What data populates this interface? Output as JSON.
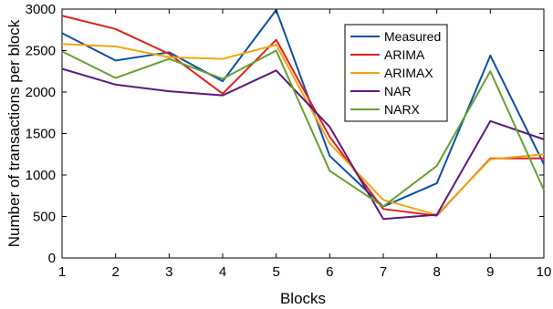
{
  "chart_data": {
    "type": "line",
    "xlabel": "Blocks",
    "ylabel": "Number of transactions per block",
    "xlim": [
      1,
      10
    ],
    "ylim": [
      0,
      3000
    ],
    "xticks": [
      1,
      2,
      3,
      4,
      5,
      6,
      7,
      8,
      9,
      10
    ],
    "yticks": [
      0,
      500,
      1000,
      1500,
      2000,
      2500,
      3000
    ],
    "grid": false,
    "legend_position": "top-right",
    "x": [
      1,
      2,
      3,
      4,
      5,
      6,
      7,
      8,
      9,
      10
    ],
    "series": [
      {
        "name": "Measured",
        "color": "#0a4fa6",
        "values": [
          2710,
          2380,
          2480,
          2130,
          2990,
          1230,
          620,
          900,
          2440,
          1130
        ]
      },
      {
        "name": "ARIMA",
        "color": "#e0211b",
        "values": [
          2920,
          2760,
          2460,
          1980,
          2630,
          1460,
          590,
          510,
          1200,
          1200
        ]
      },
      {
        "name": "ARIMAX",
        "color": "#f0a510",
        "values": [
          2580,
          2550,
          2420,
          2400,
          2570,
          1380,
          700,
          520,
          1190,
          1250
        ]
      },
      {
        "name": "NAR",
        "color": "#5e1780",
        "values": [
          2280,
          2090,
          2010,
          1960,
          2260,
          1580,
          470,
          520,
          1650,
          1430
        ]
      },
      {
        "name": "NARX",
        "color": "#63a12e",
        "values": [
          2490,
          2170,
          2400,
          2160,
          2500,
          1050,
          620,
          1110,
          2250,
          820
        ]
      }
    ]
  }
}
